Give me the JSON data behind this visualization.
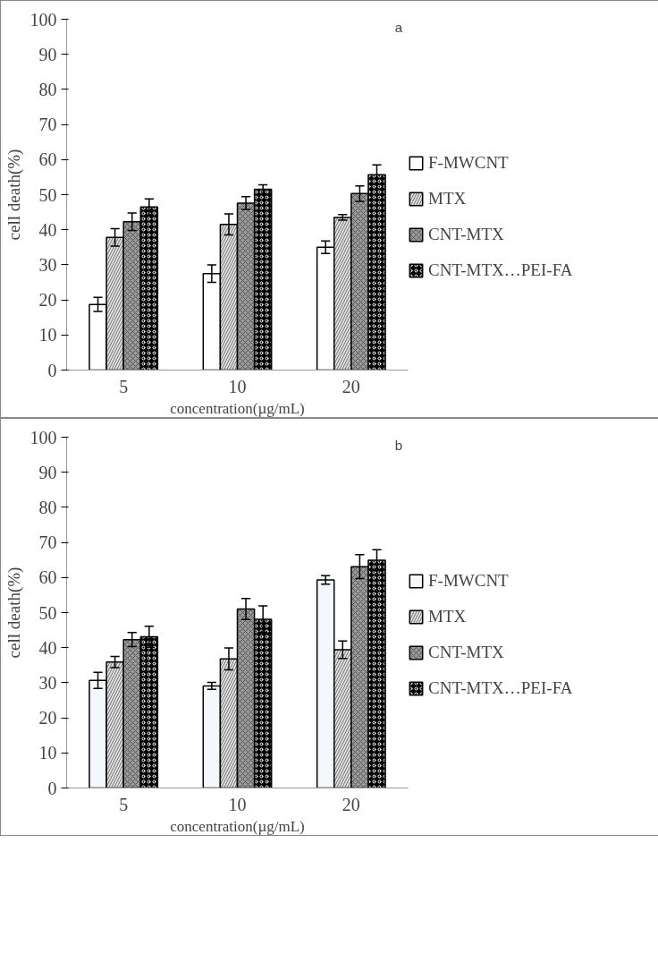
{
  "chart_data": [
    {
      "type": "bar",
      "categories": [
        "5",
        "10",
        "20"
      ],
      "xlabel": "concentration(µg/mL)",
      "ylabel": "cell death(%)",
      "annotations": [
        "a"
      ],
      "ylim": [
        0,
        100
      ],
      "yticks": [
        0,
        10,
        20,
        30,
        40,
        50,
        60,
        70,
        80,
        90,
        100
      ],
      "grid": false,
      "legend": "right",
      "series": [
        {
          "name": "F-MWCNT",
          "color": "#ffffff",
          "values": [
            18.7,
            27.5,
            35.0
          ],
          "errors": [
            2.0,
            2.5,
            1.8
          ]
        },
        {
          "name": "MTX",
          "color": "#dddddd",
          "values": [
            37.8,
            41.5,
            43.5
          ],
          "errors": [
            2.5,
            3.0,
            0.8
          ]
        },
        {
          "name": "CNT-MTX",
          "color": "#9a9a9a",
          "values": [
            42.3,
            47.6,
            50.3
          ],
          "errors": [
            2.5,
            1.8,
            2.2
          ]
        },
        {
          "name": "CNT-MTX…PEI-FA",
          "color": "#000000",
          "values": [
            46.5,
            51.5,
            55.7
          ],
          "errors": [
            2.3,
            1.3,
            2.8
          ]
        }
      ]
    },
    {
      "type": "bar",
      "categories": [
        "5",
        "10",
        "20"
      ],
      "xlabel": "concentration(µg/mL)",
      "ylabel": "cell death(%)",
      "annotations": [
        "b"
      ],
      "ylim": [
        0,
        100
      ],
      "yticks": [
        0,
        10,
        20,
        30,
        40,
        50,
        60,
        70,
        80,
        90,
        100
      ],
      "grid": false,
      "legend": "right",
      "series": [
        {
          "name": "F-MWCNT",
          "color": "#f4f8fc",
          "values": [
            30.7,
            29.1,
            59.3
          ],
          "errors": [
            2.3,
            1.0,
            1.2
          ]
        },
        {
          "name": "MTX",
          "color": "#dddddd",
          "values": [
            35.9,
            36.8,
            39.4
          ],
          "errors": [
            1.6,
            3.1,
            2.5
          ]
        },
        {
          "name": "CNT-MTX",
          "color": "#9a9a9a",
          "values": [
            42.3,
            51.0,
            63.1
          ],
          "errors": [
            2.0,
            3.0,
            3.4
          ]
        },
        {
          "name": "CNT-MTX…PEI-FA",
          "color": "#000000",
          "values": [
            43.1,
            48.1,
            64.9
          ],
          "errors": [
            3.0,
            3.8,
            3.0
          ]
        }
      ]
    }
  ]
}
